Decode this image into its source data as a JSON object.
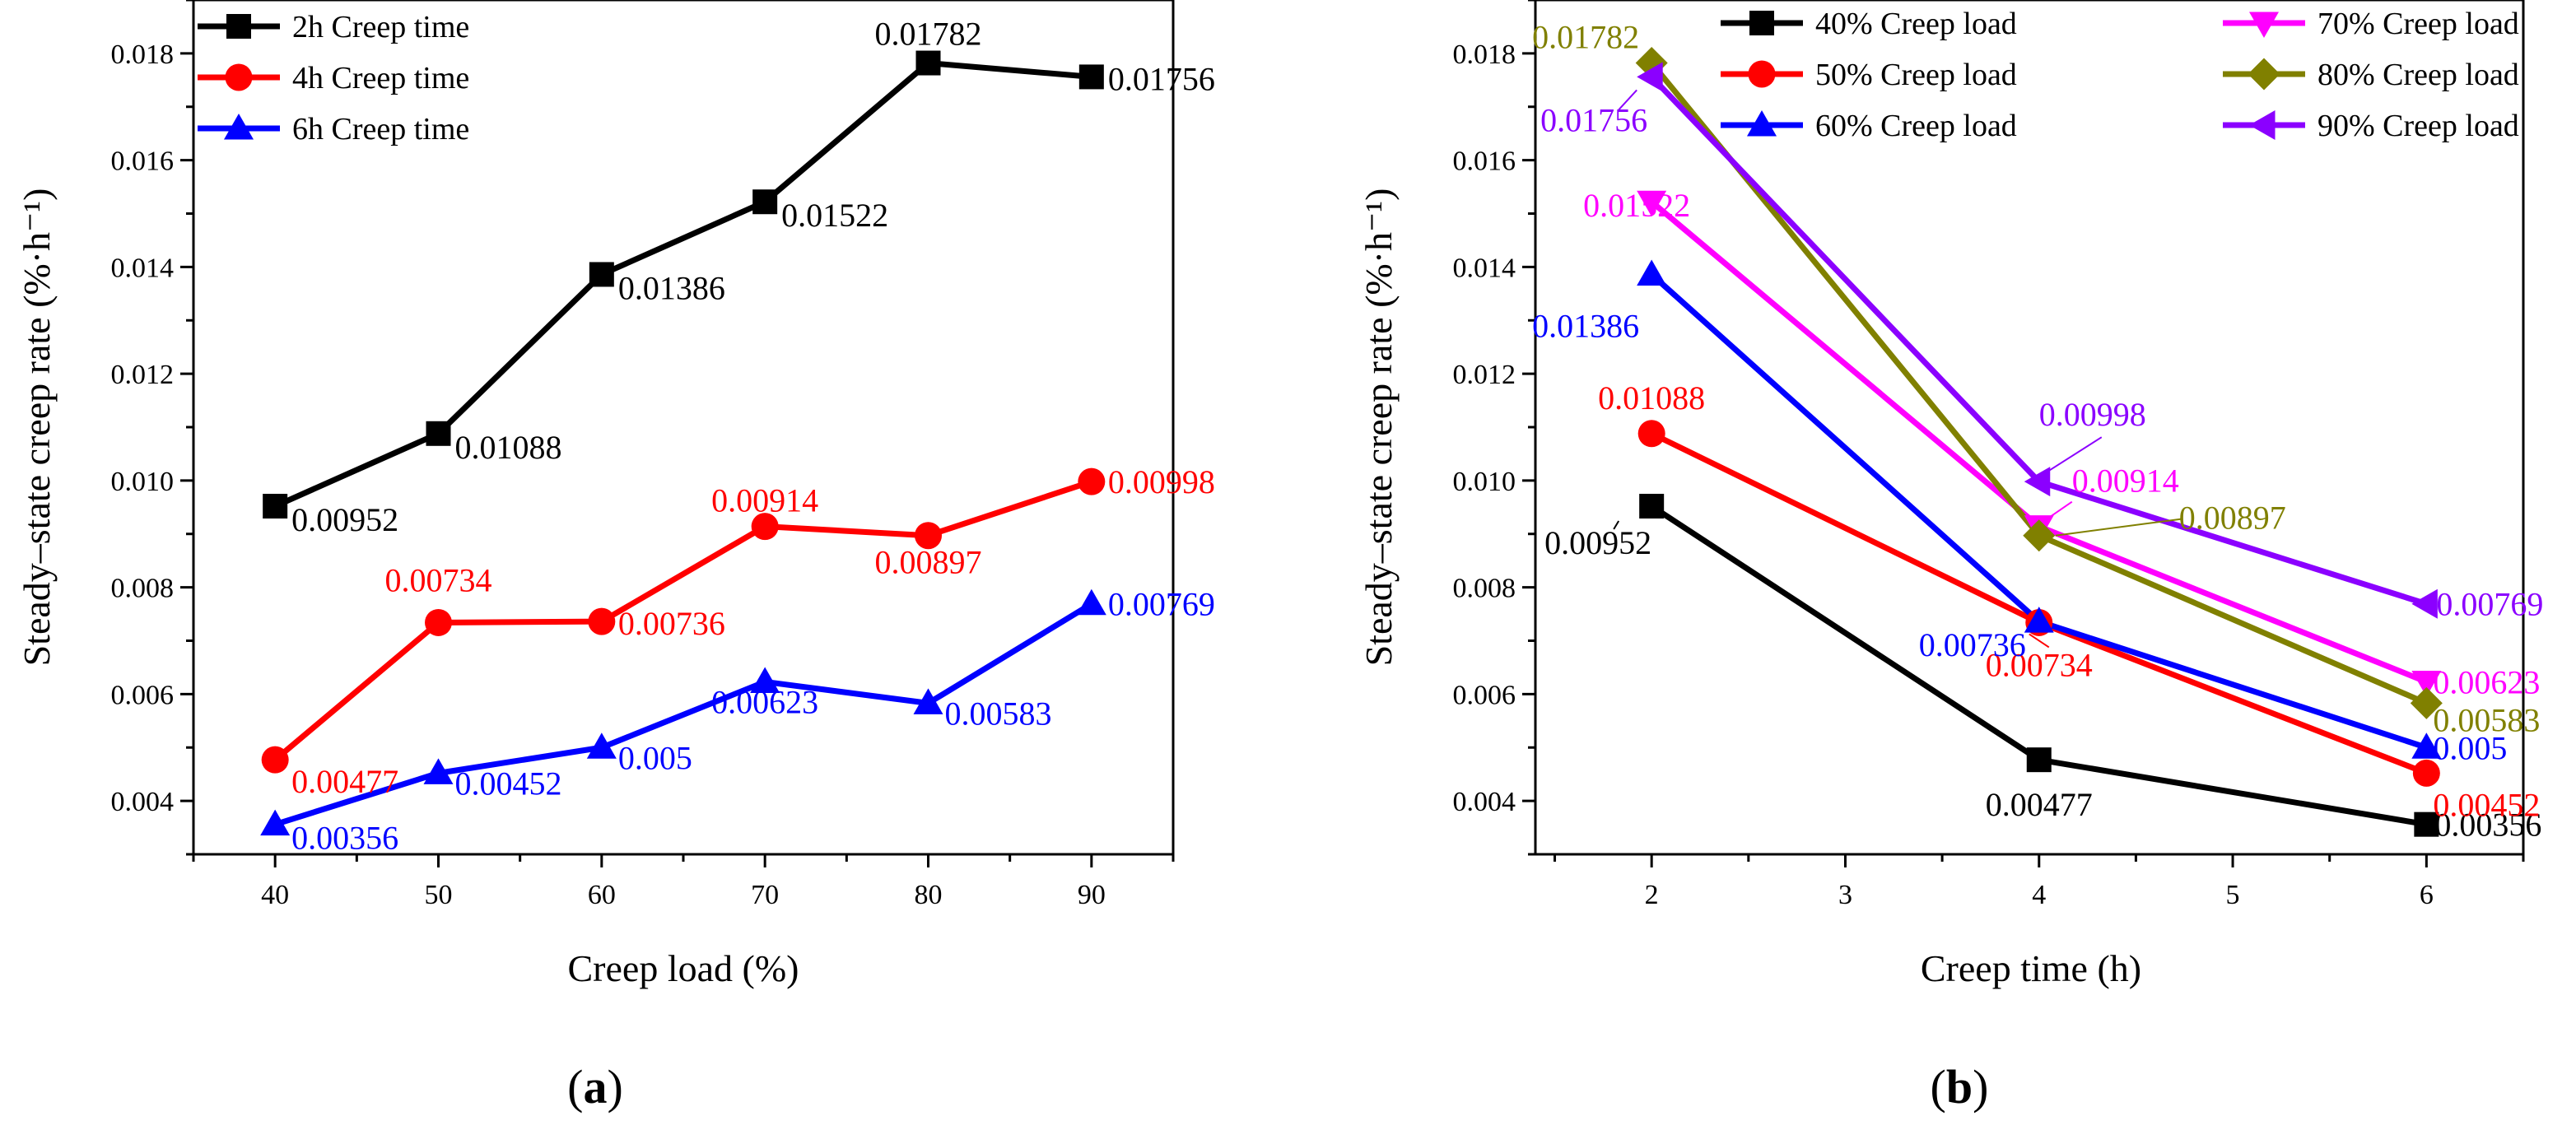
{
  "chart_data": [
    {
      "type": "line",
      "panel_label": "a",
      "xlabel": "Creep load (%)",
      "ylabel": "Steady–state creep rate (%·h⁻¹)",
      "xlim": [
        35,
        95
      ],
      "ylim": [
        0.003,
        0.019
      ],
      "xticks": [
        "40",
        "50",
        "60",
        "70",
        "80",
        "90"
      ],
      "yticks": [
        "0.004",
        "0.006",
        "0.008",
        "0.010",
        "0.012",
        "0.014",
        "0.016",
        "0.018"
      ],
      "x": [
        40,
        50,
        60,
        70,
        80,
        90
      ],
      "legend_position": "top-left",
      "series": [
        {
          "name": "2h Creep time",
          "color": "#000000",
          "marker": "square",
          "values": [
            0.00952,
            0.01088,
            0.01386,
            0.01522,
            0.01782,
            0.01756
          ],
          "labels": [
            "0.00952",
            "0.01088",
            "0.01386",
            "0.01522",
            "0.01782",
            "0.01756"
          ]
        },
        {
          "name": "4h Creep time",
          "color": "#ff0000",
          "marker": "circle",
          "values": [
            0.00477,
            0.00734,
            0.00736,
            0.00914,
            0.00897,
            0.00998
          ],
          "labels": [
            "0.00477",
            "0.00734",
            "0.00736",
            "0.00914",
            "0.00897",
            "0.00998"
          ]
        },
        {
          "name": "6h Creep time",
          "color": "#0000ff",
          "marker": "triangle-up",
          "values": [
            0.00356,
            0.00452,
            0.005,
            0.00623,
            0.00583,
            0.00769
          ],
          "labels": [
            "0.00356",
            "0.00452",
            "0.005",
            "0.00623",
            "0.00583",
            "0.00769"
          ]
        }
      ]
    },
    {
      "type": "line",
      "panel_label": "b",
      "xlabel": "Creep time (h)",
      "ylabel": "Steady–state creep rate (%·h⁻¹)",
      "xlim": [
        1.4,
        6.5
      ],
      "ylim": [
        0.003,
        0.019
      ],
      "xticks": [
        "2",
        "3",
        "4",
        "5",
        "6"
      ],
      "yticks": [
        "0.004",
        "0.006",
        "0.008",
        "0.010",
        "0.012",
        "0.014",
        "0.016",
        "0.018"
      ],
      "x": [
        2,
        4,
        6
      ],
      "legend_position": "top",
      "series": [
        {
          "name": "40% Creep load",
          "color": "#000000",
          "marker": "square",
          "values": [
            0.00952,
            0.00477,
            0.00356
          ],
          "labels": [
            "0.00952",
            "0.00477",
            "0.00356"
          ]
        },
        {
          "name": "50% Creep load",
          "color": "#ff0000",
          "marker": "circle",
          "values": [
            0.01088,
            0.00734,
            0.00452
          ],
          "labels": [
            "0.01088",
            "0.00734",
            "0.00452"
          ]
        },
        {
          "name": "60% Creep load",
          "color": "#0000ff",
          "marker": "triangle-up",
          "values": [
            0.01386,
            0.00736,
            0.005
          ],
          "labels": [
            "0.01386",
            "0.00736",
            "0.005"
          ]
        },
        {
          "name": "70% Creep load",
          "color": "#ff00ff",
          "marker": "triangle-down",
          "values": [
            0.01522,
            0.00914,
            0.00623
          ],
          "labels": [
            "0.01522",
            "0.00914",
            "0.00623"
          ]
        },
        {
          "name": "80% Creep load",
          "color": "#808000",
          "marker": "diamond",
          "values": [
            0.01782,
            0.00897,
            0.00583
          ],
          "labels": [
            "0.01782",
            "0.00897",
            "0.00583"
          ]
        },
        {
          "name": "90% Creep load",
          "color": "#8b00ff",
          "marker": "triangle-left",
          "values": [
            0.01756,
            0.00998,
            0.00769
          ],
          "labels": [
            "0.01756",
            "0.00998",
            "0.00769"
          ]
        }
      ]
    }
  ]
}
